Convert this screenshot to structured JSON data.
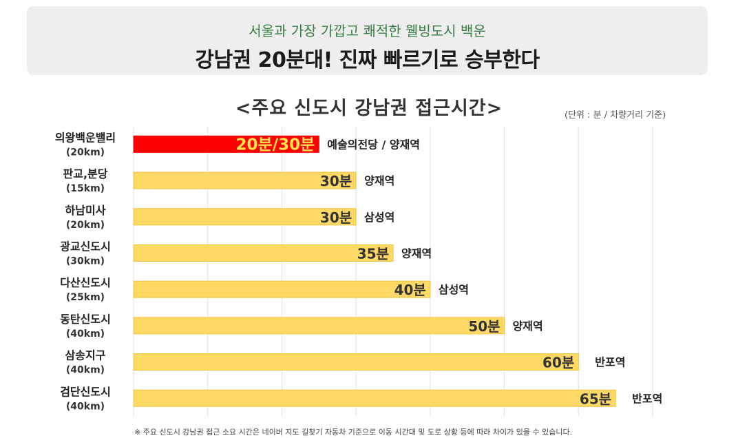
{
  "header": {
    "subtitle": "서울과 가장 가깝고 쾌적한 웰빙도시 백운",
    "title": "강남권 20분대! 진짜 빠르기로 승부한다"
  },
  "chart_data": {
    "type": "bar",
    "orientation": "horizontal",
    "title": "<주요  신도시  강남권  접근시간>",
    "unit_note": "(단위 : 분 / 차량거리 기준)",
    "xlim": [
      0,
      70
    ],
    "grid": true,
    "categories": [
      {
        "name": "의왕백운밸리",
        "distance": "(20km)"
      },
      {
        "name": "판교,분당",
        "distance": "(15km)"
      },
      {
        "name": "하남미사",
        "distance": "(20km)"
      },
      {
        "name": "광교신도시",
        "distance": "(30km)"
      },
      {
        "name": "다산신도시",
        "distance": "(25km)"
      },
      {
        "name": "동탄신도시",
        "distance": "(40km)"
      },
      {
        "name": "삼송지구",
        "distance": "(40km)"
      },
      {
        "name": "검단신도시",
        "distance": "(40km)"
      }
    ],
    "values": [
      25,
      30,
      30,
      35,
      40,
      50,
      60,
      65
    ],
    "value_labels": [
      "20분/30분",
      "30분",
      "30분",
      "35분",
      "40분",
      "50분",
      "60분",
      "65분"
    ],
    "destinations": [
      "예술의전당 / 양재역",
      "양재역",
      "삼성역",
      "양재역",
      "삼성역",
      "양재역",
      "반포역",
      "반포역"
    ],
    "highlight_index": 0,
    "colors": {
      "bar": "#ffd966",
      "bar_border": "#f2c33a",
      "highlight_bar": "#ff0000",
      "highlight_text": "#ffe34d",
      "grid": "#e2e2e2"
    }
  },
  "footnote": "※ 주요 신도시 강남권 접근 소요 시간은 네이버 지도 길찾기 자동차 기준으로 이동 시간대 및 도로 상황 등에 따라 차이가 있을 수 있습니다."
}
